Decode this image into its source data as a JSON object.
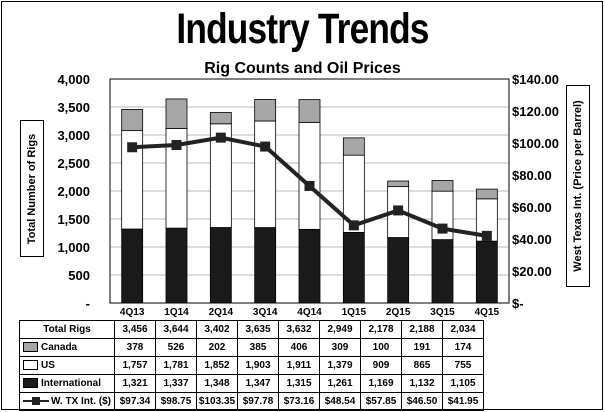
{
  "title": "Industry Trends",
  "subtitle": "Rig Counts and Oil Prices",
  "colors": {
    "canada": "#a6a6a6",
    "us": "#ffffff",
    "international": "#1a1a1a",
    "wti_line": "#222222"
  },
  "chart_data": {
    "type": "bar",
    "stacked": true,
    "title": "Rig Counts and Oil Prices",
    "categories": [
      "4Q13",
      "1Q14",
      "2Q14",
      "3Q14",
      "4Q14",
      "1Q15",
      "2Q15",
      "3Q15",
      "4Q15"
    ],
    "ylabel": "Total Number of Rigs",
    "ylim": [
      0,
      4000
    ],
    "yticks": [
      "4,000",
      "3,500",
      "3,000",
      "2,500",
      "2,000",
      "1,500",
      "1,000",
      "500",
      "-"
    ],
    "y2label": "West Texas Int. (Price per Barrel)",
    "y2lim": [
      0,
      140
    ],
    "y2ticks": [
      "$140.00",
      "$120.00",
      "$100.00",
      "$80.00",
      "$60.00",
      "$40.00",
      "$20.00",
      "$-"
    ],
    "grid": true,
    "series": [
      {
        "name": "International",
        "type": "bar",
        "values": [
          1321,
          1337,
          1348,
          1347,
          1315,
          1261,
          1169,
          1132,
          1105
        ]
      },
      {
        "name": "US",
        "type": "bar",
        "values": [
          1757,
          1781,
          1852,
          1903,
          1911,
          1379,
          909,
          865,
          755
        ]
      },
      {
        "name": "Canada",
        "type": "bar",
        "values": [
          378,
          526,
          202,
          385,
          406,
          309,
          100,
          191,
          174
        ]
      },
      {
        "name": "W. TX Int. ($)",
        "type": "line",
        "axis": "right",
        "values": [
          97.34,
          98.75,
          103.35,
          97.78,
          73.16,
          48.54,
          57.85,
          46.5,
          41.95
        ]
      }
    ]
  },
  "table": {
    "rows": [
      {
        "label": "Total Rigs",
        "swatch": "none",
        "cells": [
          "3,456",
          "3,644",
          "3,402",
          "3,635",
          "3,632",
          "2,949",
          "2,178",
          "2,188",
          "2,034"
        ]
      },
      {
        "label": "Canada",
        "swatch": "canada",
        "cells": [
          "378",
          "526",
          "202",
          "385",
          "406",
          "309",
          "100",
          "191",
          "174"
        ]
      },
      {
        "label": "US",
        "swatch": "us",
        "cells": [
          "1,757",
          "1,781",
          "1,852",
          "1,903",
          "1,911",
          "1,379",
          "909",
          "865",
          "755"
        ]
      },
      {
        "label": "International",
        "swatch": "international",
        "cells": [
          "1,321",
          "1,337",
          "1,348",
          "1,347",
          "1,315",
          "1,261",
          "1,169",
          "1,132",
          "1,105"
        ]
      },
      {
        "label": "W. TX Int. ($)",
        "swatch": "line",
        "cells": [
          "$97.34",
          "$98.75",
          "$103.35",
          "$97.78",
          "$73.16",
          "$48.54",
          "$57.85",
          "$46.50",
          "$41.95"
        ]
      }
    ]
  }
}
